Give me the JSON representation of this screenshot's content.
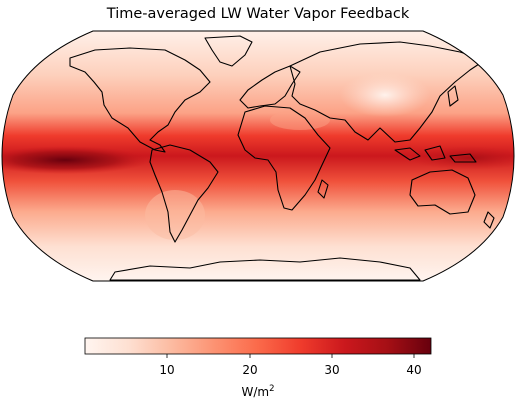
{
  "title": "Time-averaged LW Water Vapor Feedback",
  "colorbar": {
    "colormap": "Reds",
    "range": [
      0,
      42
    ],
    "ticks": [
      "10",
      "20",
      "30",
      "40"
    ],
    "unit_base": "W/m",
    "unit_exponent": "2"
  },
  "map": {
    "projection": "Robinson",
    "coastlines": true
  }
}
